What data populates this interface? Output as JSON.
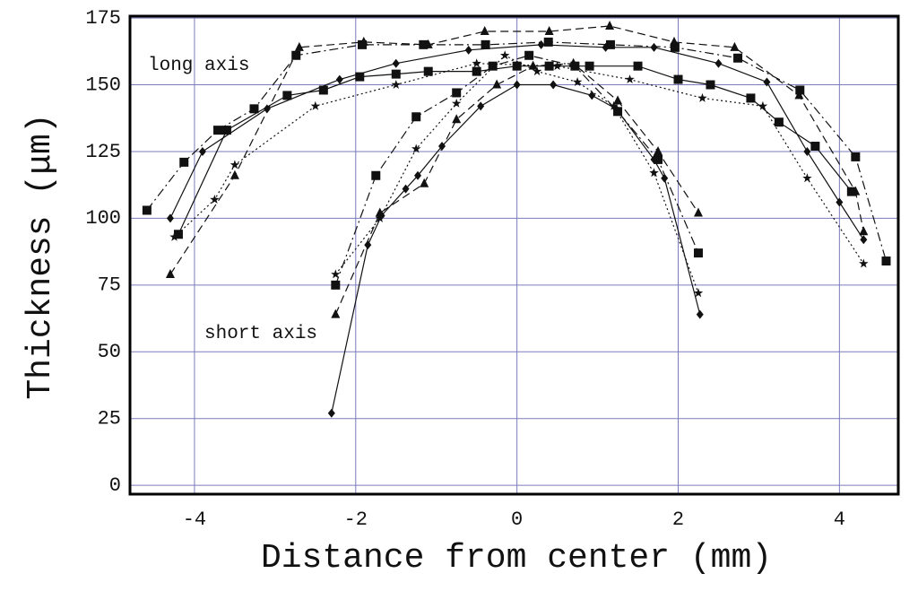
{
  "chart_data": {
    "type": "line",
    "xlabel": "Distance from center (mm)",
    "ylabel": "Thickness (μm)",
    "annotations": [
      "long axis",
      "short axis"
    ],
    "xlim": [
      -4.8,
      4.73
    ],
    "ylim": [
      -3.3,
      175.7
    ],
    "xticks": [
      -4,
      -2,
      0,
      2,
      4
    ],
    "yticks": [
      0,
      25,
      50,
      75,
      100,
      125,
      150,
      175
    ],
    "grid": true,
    "series": [
      {
        "color": "#111111",
        "marker": "square",
        "dash": "dashdot",
        "x": [
          -4.59,
          -4.13,
          -3.71,
          -3.26,
          -2.74,
          -1.92,
          -1.16,
          -0.39,
          0.39,
          1.16,
          1.96,
          2.74,
          3.51,
          4.2,
          4.58
        ],
        "values": [
          103,
          121,
          133,
          141,
          161,
          165,
          165,
          165,
          166,
          165,
          164,
          160,
          148,
          123,
          84
        ]
      },
      {
        "color": "#111111",
        "marker": "triangle",
        "dash": "dashed",
        "x": [
          -4.3,
          -3.5,
          -2.7,
          -1.9,
          -1.1,
          -0.4,
          0.4,
          1.15,
          1.95,
          2.7,
          3.5,
          4.2,
          4.3
        ],
        "values": [
          79,
          116,
          164,
          166,
          165,
          170,
          170,
          172,
          166,
          164,
          146,
          110,
          95
        ]
      },
      {
        "color": "#111111",
        "marker": "diamond",
        "dash": "solid",
        "x": [
          -4.3,
          -3.9,
          -3.1,
          -2.2,
          -1.5,
          -0.6,
          0.3,
          1.1,
          1.7,
          2.5,
          3.1,
          3.6,
          4.0,
          4.3
        ],
        "values": [
          100,
          125,
          141,
          152,
          158,
          163,
          165,
          164,
          164,
          158,
          151,
          125,
          106,
          92
        ]
      },
      {
        "color": "#111111",
        "marker": "star",
        "dash": "dotted",
        "x": [
          -4.25,
          -3.75,
          -3.5,
          -2.5,
          -1.5,
          -0.5,
          0.5,
          1.4,
          2.3,
          3.05,
          3.6,
          4.3
        ],
        "values": [
          93,
          107,
          120,
          142,
          150,
          158,
          157,
          152,
          145,
          142,
          115,
          83
        ]
      },
      {
        "color": "#111111",
        "marker": "square",
        "dash": "solid",
        "x": [
          -4.2,
          -3.6,
          -2.85,
          -2.4,
          -1.95,
          -1.5,
          -1.1,
          -0.5,
          0,
          0.4,
          0.9,
          1.5,
          2.0,
          2.4,
          2.9,
          3.25,
          3.7,
          4.15
        ],
        "values": [
          94,
          133,
          146,
          148,
          153,
          154,
          155,
          155,
          157,
          157,
          157,
          157,
          152,
          150,
          145,
          136,
          127,
          110
        ]
      },
      {
        "color": "#111111",
        "marker": "diamond",
        "dash": "solid",
        "x": [
          -2.3,
          -1.85,
          -1.68,
          -1.38,
          -1.23,
          -0.93,
          -0.45,
          0,
          0.45,
          0.93,
          1.23,
          1.7,
          1.83,
          2.27
        ],
        "values": [
          27,
          90,
          101,
          111,
          116,
          127,
          142,
          150,
          150,
          146,
          141,
          122,
          115,
          64
        ]
      },
      {
        "color": "#111111",
        "marker": "square",
        "dash": "dashdot",
        "x": [
          -2.25,
          -1.75,
          -1.25,
          -0.75,
          -0.3,
          0.15,
          0.72,
          1.25,
          1.75,
          2.25
        ],
        "values": [
          75,
          116,
          138,
          147,
          157,
          161,
          157,
          140,
          122,
          87
        ]
      },
      {
        "color": "#111111",
        "marker": "triangle",
        "dash": "dashed",
        "x": [
          -2.25,
          -1.7,
          -1.15,
          -0.75,
          -0.25,
          0.2,
          0.7,
          1.25,
          1.75,
          2.25
        ],
        "values": [
          64,
          102,
          113,
          137,
          150,
          157,
          158,
          144,
          125,
          102
        ]
      },
      {
        "color": "#111111",
        "marker": "star",
        "dash": "dotted",
        "x": [
          -2.25,
          -1.7,
          -1.25,
          -0.75,
          -0.15,
          0.25,
          0.75,
          1.2,
          1.7,
          2.25
        ],
        "values": [
          79,
          100,
          126,
          143,
          161,
          155,
          151,
          142,
          117,
          72
        ]
      }
    ]
  }
}
